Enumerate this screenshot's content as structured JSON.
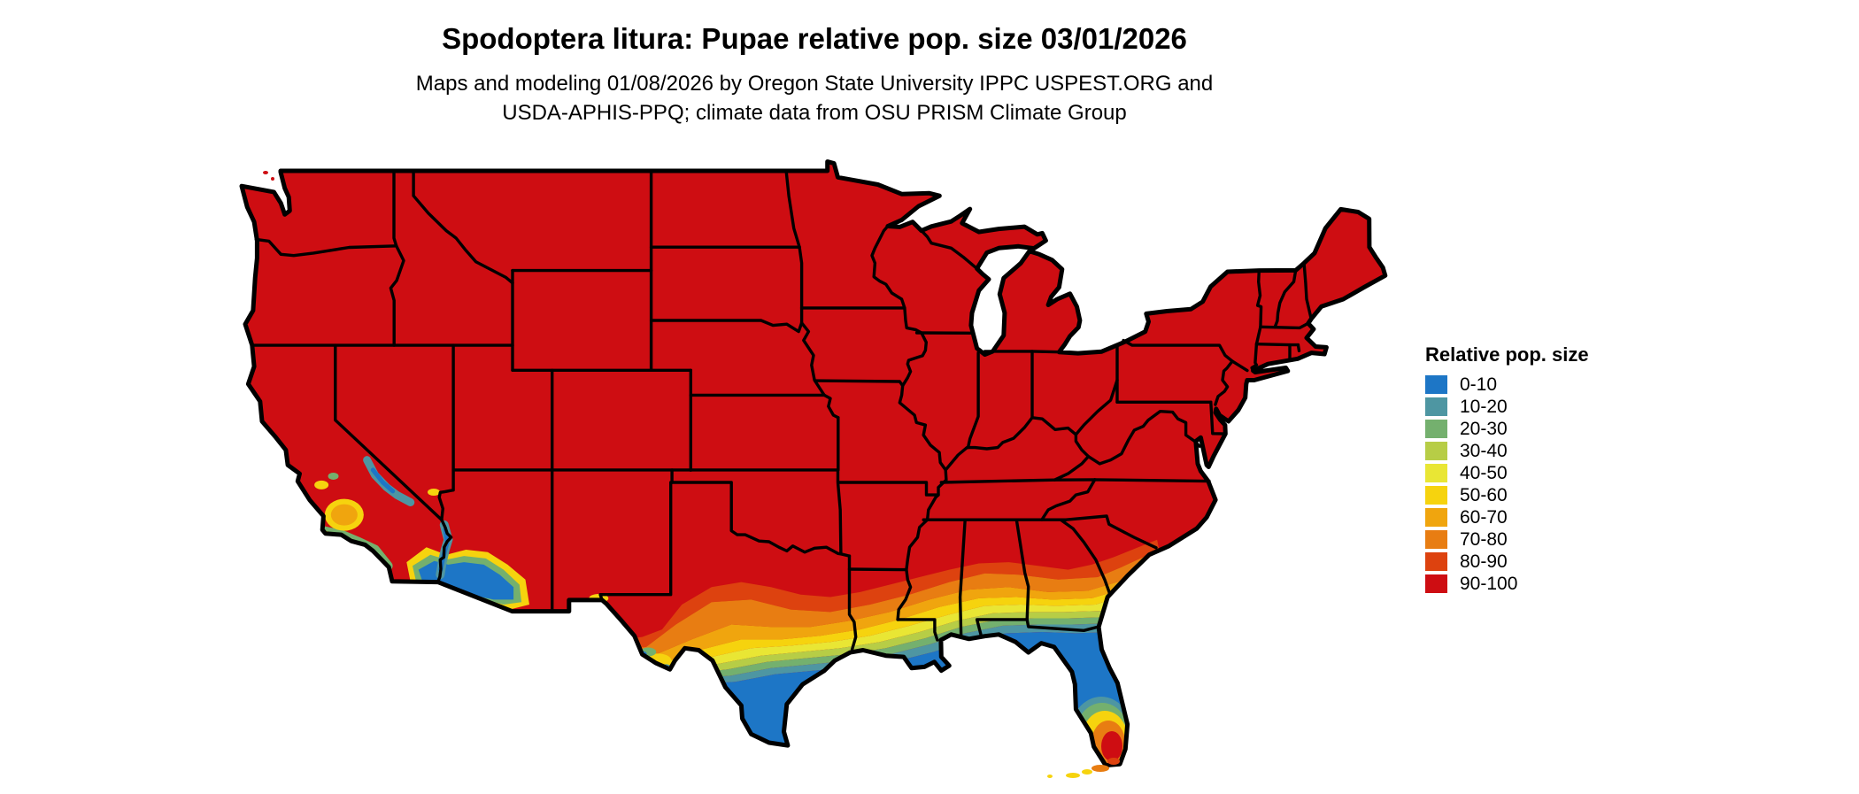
{
  "header": {
    "title": "Spodoptera litura: Pupae relative pop. size 03/01/2026",
    "subtitle_line1": "Maps and modeling 01/08/2026 by Oregon State University IPPC USPEST.ORG and",
    "subtitle_line2": "USDA-APHIS-PPQ; climate data from OSU PRISM Climate Group"
  },
  "legend": {
    "title": "Relative pop. size",
    "items": [
      {
        "label": "0-10",
        "color": "#1d76c6"
      },
      {
        "label": "10-20",
        "color": "#4e96a2"
      },
      {
        "label": "20-30",
        "color": "#74b06e"
      },
      {
        "label": "30-40",
        "color": "#b7cd46"
      },
      {
        "label": "40-50",
        "color": "#e9e634"
      },
      {
        "label": "50-60",
        "color": "#f6d30e"
      },
      {
        "label": "60-70",
        "color": "#f0a50e"
      },
      {
        "label": "70-80",
        "color": "#e87d12"
      },
      {
        "label": "80-90",
        "color": "#dd420f"
      },
      {
        "label": "90-100",
        "color": "#ce0d12"
      }
    ]
  }
}
